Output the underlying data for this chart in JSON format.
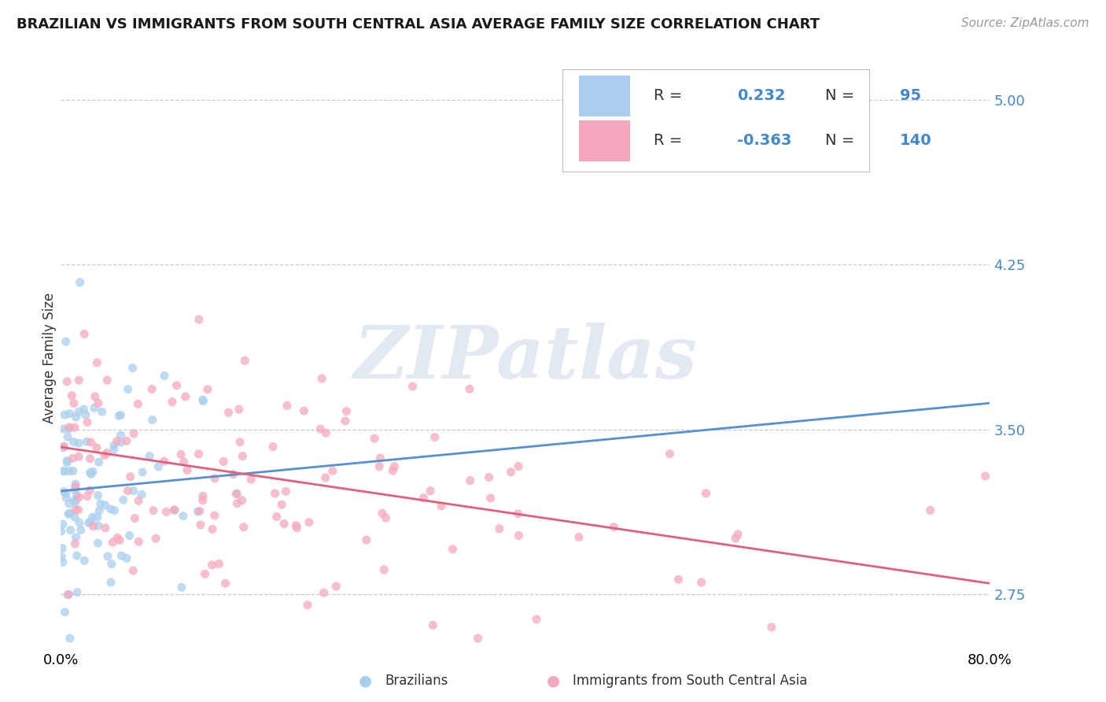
{
  "title": "BRAZILIAN VS IMMIGRANTS FROM SOUTH CENTRAL ASIA AVERAGE FAMILY SIZE CORRELATION CHART",
  "source_text": "Source: ZipAtlas.com",
  "ylabel": "Average Family Size",
  "y_ticks": [
    2.75,
    3.5,
    4.25,
    5.0
  ],
  "x_lim": [
    0.0,
    0.8
  ],
  "y_lim": [
    2.5,
    5.15
  ],
  "watermark": "ZIPatlas",
  "series": [
    {
      "name": "Brazilians",
      "R": 0.232,
      "N": 95,
      "color": "#aacfee",
      "line_color": "#5590d0",
      "seed": 42,
      "trend_x0": 0.0,
      "trend_x1": 0.8,
      "trend_y0": 3.22,
      "trend_y1": 3.62
    },
    {
      "name": "Immigrants from South Central Asia",
      "R": -0.363,
      "N": 140,
      "color": "#f5a8bc",
      "line_color": "#e06080",
      "seed": 17,
      "trend_x0": 0.0,
      "trend_x1": 0.8,
      "trend_y0": 3.42,
      "trend_y1": 2.8
    }
  ],
  "grid_color": "#c0ccd8",
  "background_color": "#ffffff",
  "watermark_color": "#ccd8e8",
  "tick_color": "#4488cc",
  "legend_text_color": "#4488cc",
  "legend_label_color": "#333333",
  "title_fontsize": 13,
  "ylabel_fontsize": 12,
  "tick_fontsize": 13,
  "source_fontsize": 11
}
